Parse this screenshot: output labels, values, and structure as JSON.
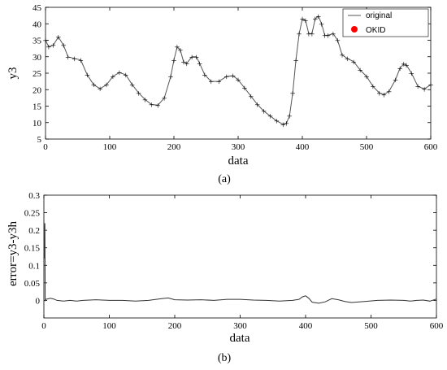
{
  "chart_data": [
    {
      "type": "line",
      "panel_label": "(a)",
      "xlabel": "data",
      "ylabel": "y3",
      "xlim": [
        0,
        600
      ],
      "ylim": [
        5,
        45
      ],
      "xticks": [
        "0",
        "100",
        "200",
        "300",
        "400",
        "500",
        "600"
      ],
      "yticks": [
        "5",
        "10",
        "15",
        "20",
        "25",
        "30",
        "35",
        "40",
        "45"
      ],
      "legend_position": "top-right",
      "series": [
        {
          "name": "original",
          "style": "line",
          "color": "#555555",
          "x": [
            0,
            5,
            12,
            20,
            28,
            35,
            45,
            55,
            65,
            75,
            85,
            95,
            105,
            115,
            125,
            135,
            145,
            155,
            165,
            175,
            185,
            195,
            200,
            205,
            210,
            215,
            220,
            228,
            235,
            240,
            248,
            258,
            270,
            282,
            292,
            300,
            310,
            320,
            330,
            340,
            350,
            360,
            370,
            375,
            380,
            385,
            390,
            395,
            400,
            405,
            410,
            415,
            420,
            425,
            430,
            435,
            440,
            448,
            455,
            462,
            470,
            480,
            490,
            500,
            510,
            520,
            527,
            535,
            545,
            552,
            558,
            562,
            570,
            580,
            590,
            600
          ],
          "y": [
            35,
            33,
            33.5,
            36,
            33.5,
            30,
            29.5,
            29,
            24.5,
            21.5,
            20.3,
            21.5,
            24,
            25.2,
            24.5,
            21.5,
            19,
            17,
            15.5,
            15.3,
            17.5,
            24,
            29,
            33,
            32,
            28.5,
            28,
            30,
            30,
            28,
            24.5,
            22.5,
            22.5,
            24,
            24.2,
            23,
            20.5,
            18,
            15.5,
            13.5,
            12,
            10.5,
            9.5,
            9.8,
            12,
            19,
            29,
            37,
            41.5,
            41,
            37,
            37,
            41.5,
            42.3,
            40,
            36.5,
            36.5,
            37,
            35,
            30.5,
            29.5,
            28.5,
            26,
            24,
            21,
            19,
            18.5,
            19.5,
            23,
            26.5,
            27.8,
            27.5,
            25,
            21,
            20.2,
            21.5
          ]
        },
        {
          "name": "OKID",
          "style": "markers",
          "color": "#ff0000",
          "x": [
            0,
            5,
            12,
            20,
            28,
            35,
            45,
            55,
            65,
            75,
            85,
            95,
            105,
            115,
            125,
            135,
            145,
            155,
            165,
            175,
            185,
            195,
            200,
            205,
            210,
            215,
            220,
            228,
            235,
            240,
            248,
            258,
            270,
            282,
            292,
            300,
            310,
            320,
            330,
            340,
            350,
            360,
            370,
            375,
            380,
            385,
            390,
            395,
            400,
            405,
            410,
            415,
            420,
            425,
            430,
            435,
            440,
            448,
            455,
            462,
            470,
            480,
            490,
            500,
            510,
            520,
            527,
            535,
            545,
            552,
            558,
            562,
            570,
            580,
            590,
            600
          ],
          "y": [
            35,
            33,
            33.5,
            36,
            33.5,
            30,
            29.5,
            29,
            24.5,
            21.5,
            20.3,
            21.5,
            24,
            25.2,
            24.5,
            21.5,
            19,
            17,
            15.5,
            15.3,
            17.5,
            24,
            29,
            33,
            32,
            28.5,
            28,
            30,
            30,
            28,
            24.5,
            22.5,
            22.5,
            24,
            24.2,
            23,
            20.5,
            18,
            15.5,
            13.5,
            12,
            10.5,
            9.5,
            9.8,
            12,
            19,
            29,
            37,
            41.5,
            41,
            37,
            37,
            41.5,
            42.3,
            40,
            36.5,
            36.5,
            37,
            35,
            30.5,
            29.5,
            28.5,
            26,
            24,
            21,
            19,
            18.5,
            19.5,
            23,
            26.5,
            27.8,
            27.5,
            25,
            21,
            20.2,
            21.5
          ]
        }
      ]
    },
    {
      "type": "line",
      "panel_label": "(b)",
      "xlabel": "data",
      "ylabel": "error=y3-y3h",
      "xlim": [
        0,
        600
      ],
      "ylim": [
        -0.05,
        0.3
      ],
      "xticks": [
        "0",
        "100",
        "200",
        "300",
        "400",
        "500",
        "600"
      ],
      "yticks": [
        "0",
        "0.05",
        "0.1",
        "0.15",
        "0.2",
        "0.25",
        "0.3"
      ],
      "series": [
        {
          "color": "#333333",
          "x": [
            0,
            1,
            1.5,
            2,
            3,
            5,
            10,
            15,
            20,
            30,
            40,
            50,
            60,
            70,
            80,
            100,
            120,
            140,
            160,
            180,
            190,
            200,
            220,
            240,
            260,
            280,
            300,
            320,
            340,
            360,
            380,
            390,
            395,
            400,
            405,
            410,
            420,
            430,
            440,
            450,
            460,
            470,
            490,
            510,
            530,
            550,
            560,
            570,
            580,
            590,
            600
          ],
          "y": [
            0.23,
            0.12,
            0.22,
            0.0,
            0.003,
            0.004,
            0.006,
            0.004,
            0.0,
            -0.002,
            0.0,
            -0.002,
            0.0,
            0.001,
            0.002,
            0.0,
            0.0,
            -0.002,
            0.0,
            0.005,
            0.007,
            0.002,
            0.001,
            0.002,
            0.0,
            0.003,
            0.003,
            0.001,
            0.0,
            -0.002,
            0.0,
            0.003,
            0.01,
            0.013,
            0.006,
            -0.005,
            -0.008,
            -0.004,
            0.005,
            0.002,
            -0.003,
            -0.006,
            -0.003,
            0.0,
            0.001,
            0.0,
            -0.002,
            0.0,
            0.001,
            -0.002,
            0.004
          ]
        }
      ]
    }
  ]
}
